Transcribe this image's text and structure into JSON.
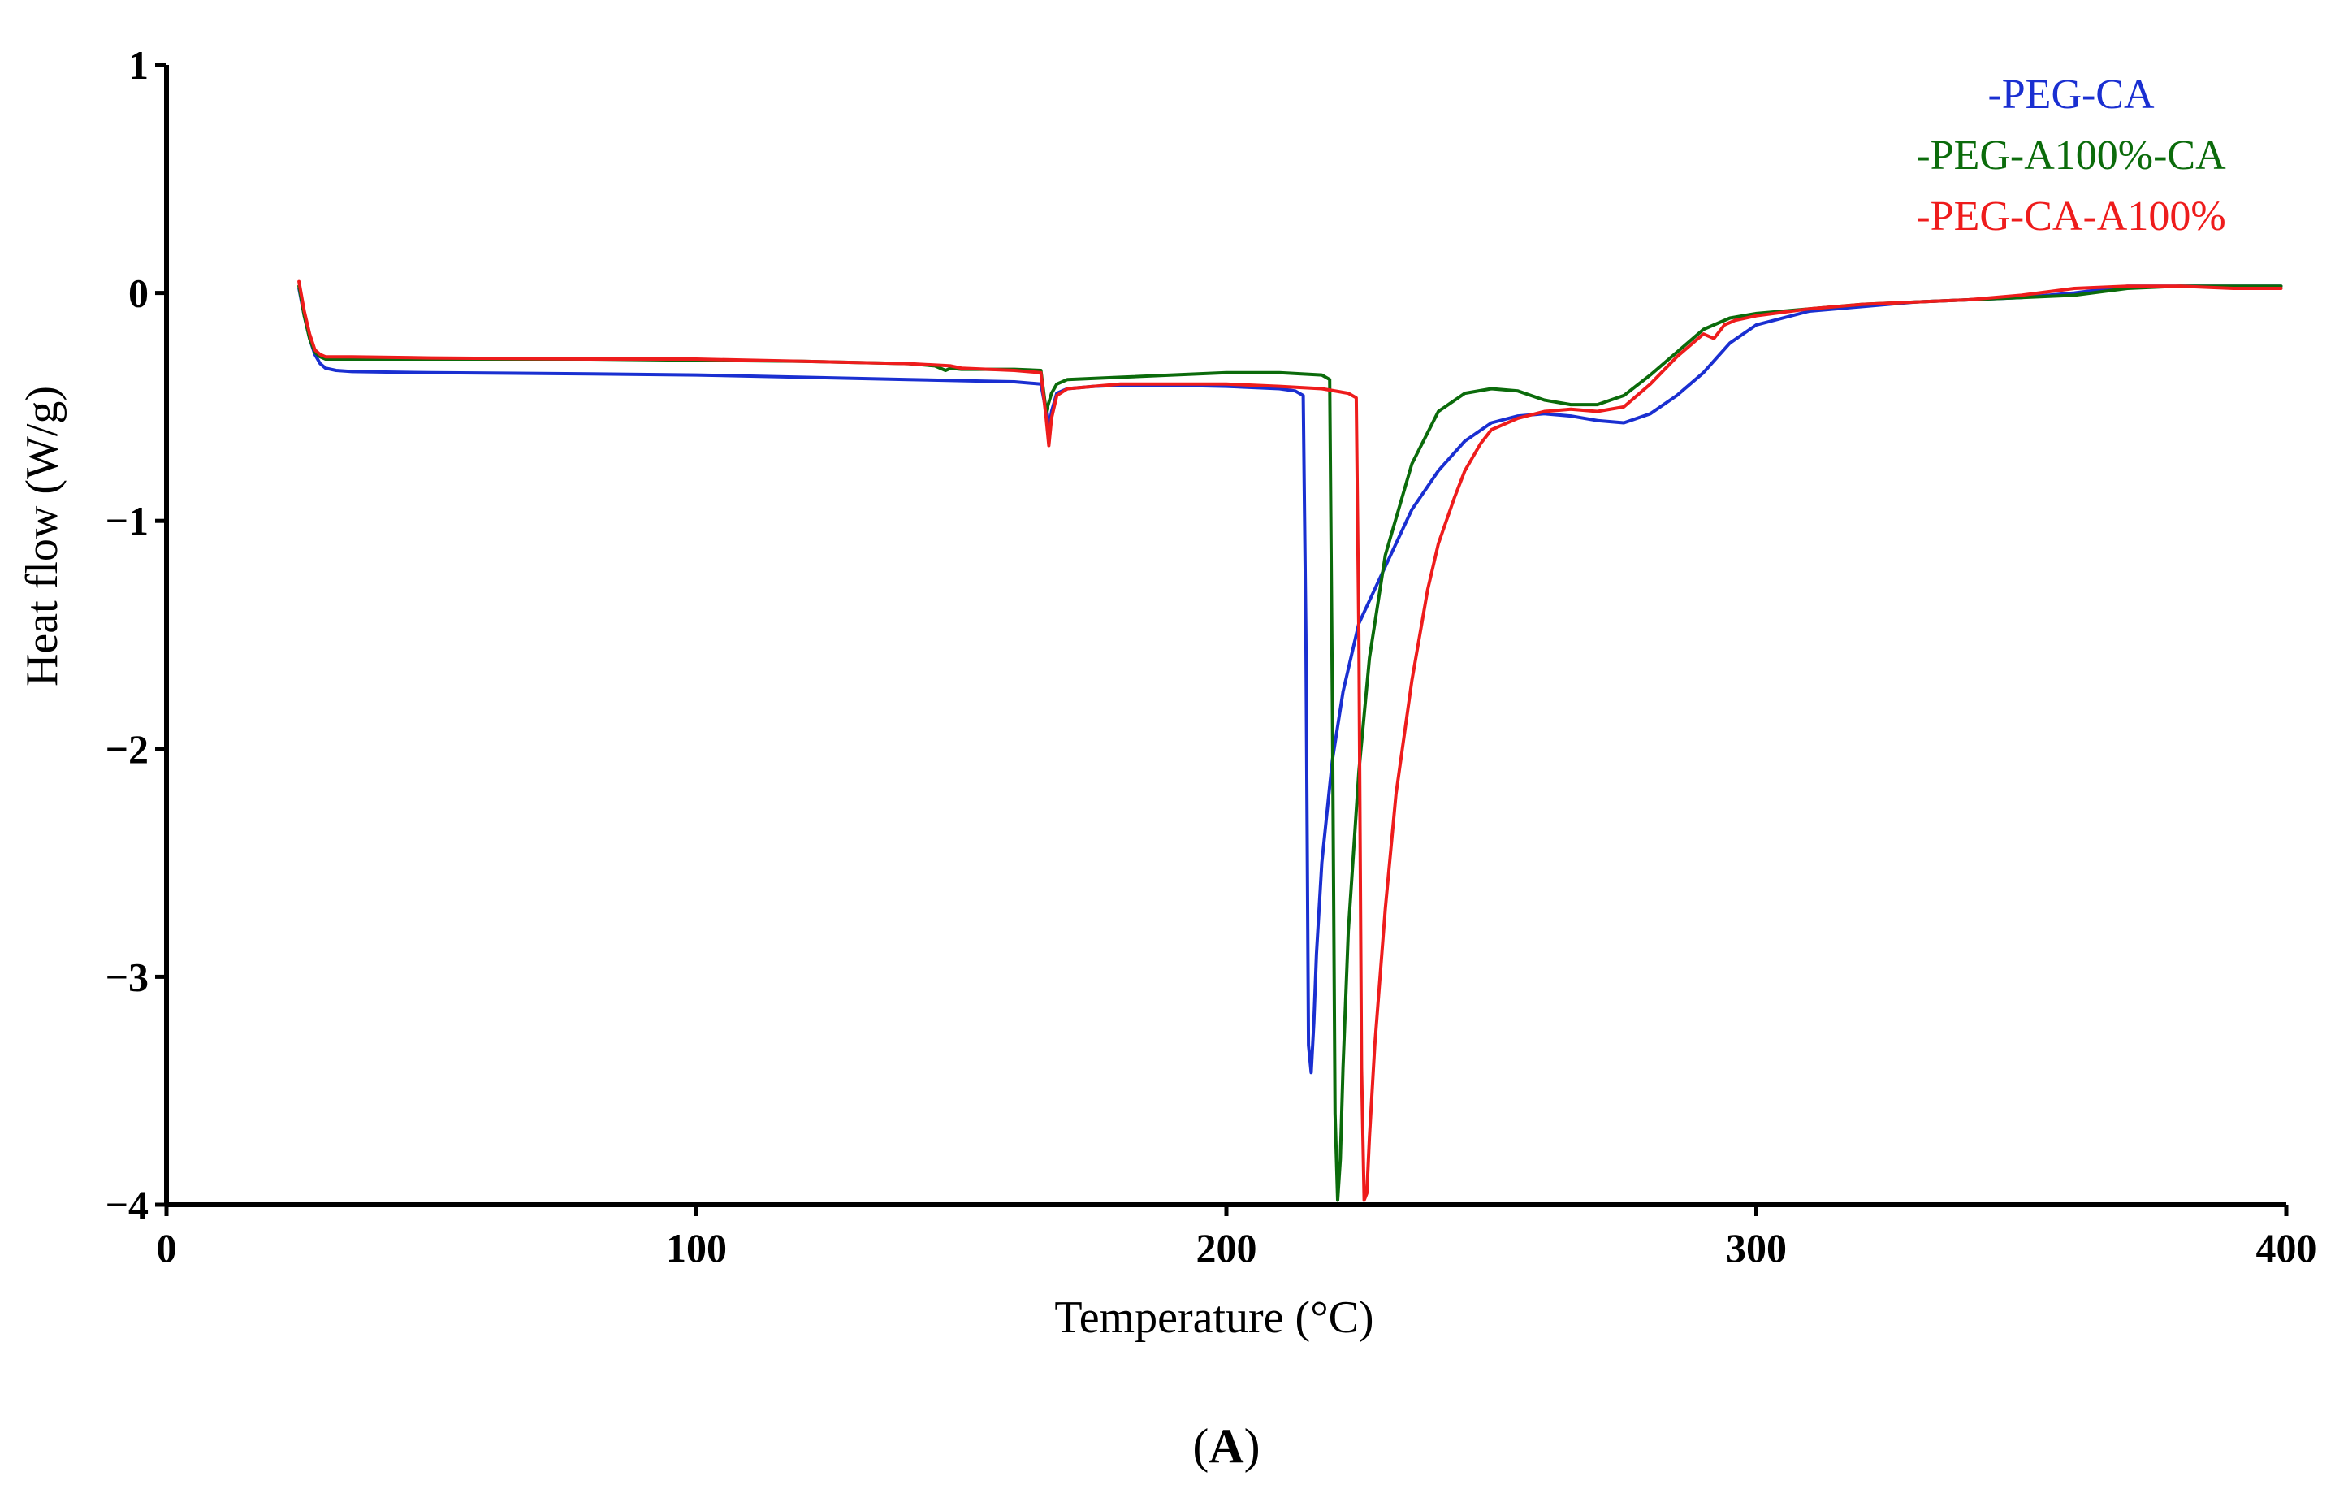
{
  "chart_data": {
    "type": "line",
    "title": "",
    "panel_label_prefix": "(",
    "panel_label": "A",
    "panel_label_suffix": ")",
    "xlabel": "Temperature (°C)",
    "ylabel": "Heat flow (W/g)",
    "xlim": [
      0,
      400
    ],
    "ylim": [
      -4,
      1
    ],
    "xticks": [
      0,
      100,
      200,
      300,
      400
    ],
    "yticks": [
      1,
      0,
      -1,
      -2,
      -3,
      -4
    ],
    "xtick_labels": [
      "0",
      "100",
      "200",
      "300",
      "400"
    ],
    "ytick_labels": [
      "1",
      "0",
      "−1",
      "−2",
      "−3",
      "−4"
    ],
    "grid": false,
    "legend_position": "top-right",
    "series": [
      {
        "name": "-PEG-CA",
        "color": "#1a2fd1",
        "x": [
          25,
          26,
          27,
          28,
          29,
          30,
          32,
          35,
          50,
          80,
          100,
          120,
          140,
          150,
          160,
          165,
          166,
          166.5,
          167,
          168,
          170,
          175,
          180,
          190,
          200,
          210,
          213,
          214.5,
          215,
          215.5,
          216,
          216.5,
          217,
          218,
          220,
          222,
          225,
          230,
          235,
          240,
          245,
          250,
          255,
          260,
          265,
          270,
          275,
          280,
          285,
          290,
          295,
          300,
          310,
          320,
          330,
          340,
          350,
          360,
          370,
          380,
          390,
          399
        ],
        "y": [
          0.02,
          -0.1,
          -0.2,
          -0.27,
          -0.31,
          -0.33,
          -0.34,
          -0.345,
          -0.35,
          -0.355,
          -0.36,
          -0.37,
          -0.38,
          -0.385,
          -0.39,
          -0.4,
          -0.52,
          -0.6,
          -0.52,
          -0.44,
          -0.42,
          -0.41,
          -0.405,
          -0.405,
          -0.41,
          -0.42,
          -0.43,
          -0.45,
          -1.5,
          -3.3,
          -3.42,
          -3.2,
          -2.9,
          -2.5,
          -2.05,
          -1.75,
          -1.45,
          -1.2,
          -0.95,
          -0.78,
          -0.65,
          -0.57,
          -0.54,
          -0.53,
          -0.54,
          -0.56,
          -0.57,
          -0.53,
          -0.45,
          -0.35,
          -0.22,
          -0.14,
          -0.08,
          -0.06,
          -0.04,
          -0.03,
          -0.02,
          0.0,
          0.03,
          0.03,
          0.03,
          0.03
        ]
      },
      {
        "name": "-PEG-A100%-CA",
        "color": "#0b6b0b",
        "x": [
          25,
          26,
          27,
          28,
          29,
          30,
          32,
          35,
          50,
          80,
          100,
          120,
          140,
          145,
          147,
          148,
          150,
          160,
          165,
          166,
          167,
          168,
          170,
          180,
          200,
          210,
          218,
          219.5,
          220,
          220.5,
          221,
          221.5,
          222,
          223,
          225,
          227,
          230,
          235,
          240,
          245,
          250,
          255,
          260,
          265,
          270,
          275,
          280,
          285,
          290,
          295,
          300,
          310,
          320,
          330,
          340,
          350,
          360,
          370,
          380,
          390,
          399
        ],
        "y": [
          0.03,
          -0.1,
          -0.2,
          -0.26,
          -0.28,
          -0.29,
          -0.29,
          -0.29,
          -0.29,
          -0.29,
          -0.295,
          -0.3,
          -0.31,
          -0.32,
          -0.34,
          -0.33,
          -0.335,
          -0.335,
          -0.34,
          -0.52,
          -0.44,
          -0.4,
          -0.38,
          -0.37,
          -0.35,
          -0.35,
          -0.36,
          -0.38,
          -1.8,
          -3.6,
          -3.98,
          -3.8,
          -3.4,
          -2.8,
          -2.1,
          -1.6,
          -1.15,
          -0.75,
          -0.52,
          -0.44,
          -0.42,
          -0.43,
          -0.47,
          -0.49,
          -0.49,
          -0.45,
          -0.36,
          -0.26,
          -0.16,
          -0.11,
          -0.09,
          -0.07,
          -0.05,
          -0.04,
          -0.03,
          -0.02,
          -0.01,
          0.02,
          0.03,
          0.03,
          0.03
        ]
      },
      {
        "name": "-PEG-CA-A100%",
        "color": "#ee1c1c",
        "x": [
          25,
          26,
          27,
          28,
          29,
          30,
          32,
          35,
          50,
          80,
          100,
          120,
          140,
          148,
          150,
          160,
          165,
          166,
          166.5,
          167,
          168,
          170,
          175,
          180,
          190,
          200,
          210,
          218,
          223,
          224.5,
          225,
          225.5,
          226,
          226.5,
          227,
          228,
          230,
          232,
          235,
          238,
          240,
          243,
          245,
          248,
          250,
          255,
          260,
          265,
          270,
          275,
          280,
          285,
          290,
          292,
          294,
          296,
          300,
          310,
          320,
          330,
          340,
          350,
          360,
          370,
          380,
          390,
          399
        ],
        "y": [
          0.05,
          -0.08,
          -0.18,
          -0.25,
          -0.27,
          -0.28,
          -0.28,
          -0.28,
          -0.285,
          -0.29,
          -0.29,
          -0.3,
          -0.31,
          -0.32,
          -0.33,
          -0.34,
          -0.35,
          -0.55,
          -0.67,
          -0.55,
          -0.45,
          -0.42,
          -0.41,
          -0.4,
          -0.4,
          -0.4,
          -0.41,
          -0.42,
          -0.44,
          -0.46,
          -1.5,
          -3.4,
          -3.98,
          -3.95,
          -3.7,
          -3.3,
          -2.7,
          -2.2,
          -1.7,
          -1.3,
          -1.1,
          -0.9,
          -0.78,
          -0.66,
          -0.6,
          -0.55,
          -0.52,
          -0.51,
          -0.52,
          -0.5,
          -0.4,
          -0.28,
          -0.18,
          -0.2,
          -0.14,
          -0.12,
          -0.1,
          -0.07,
          -0.05,
          -0.04,
          -0.03,
          -0.01,
          0.02,
          0.03,
          0.03,
          0.02,
          0.02
        ]
      }
    ]
  }
}
